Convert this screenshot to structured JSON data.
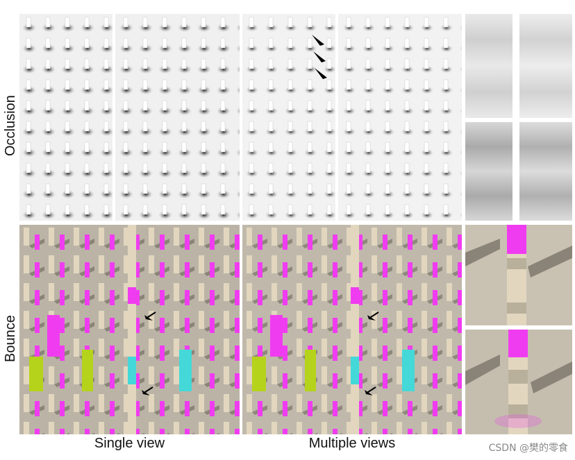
{
  "rows": [
    "Occlusion",
    "Bounce"
  ],
  "columns": [
    "Single view",
    "Multiple views"
  ],
  "watermark": "CSDN @樊的零食",
  "colors": {
    "magenta": "#f03cf0",
    "cyan": "#45d8d8",
    "lime": "#b5d31a",
    "beige": "#e2d6bf",
    "floor": "#bbb4a6",
    "shadow": "#8a8478"
  }
}
